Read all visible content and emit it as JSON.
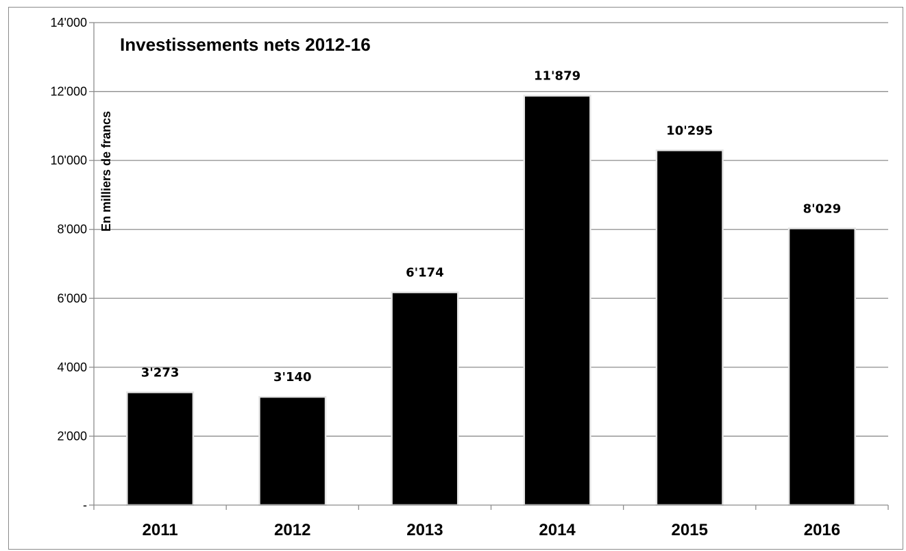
{
  "chart_data": {
    "type": "bar",
    "title": "Investissements nets 2012-16",
    "ylabel": "En milliers de francs",
    "xlabel": "",
    "categories": [
      "2011",
      "2012",
      "2013",
      "2014",
      "2015",
      "2016"
    ],
    "values": [
      3273,
      3140,
      6174,
      11879,
      10295,
      8029
    ],
    "value_labels": [
      "3'273",
      "3'140",
      "6'174",
      "11'879",
      "10'295",
      "8'029"
    ],
    "ylim": [
      0,
      14000
    ],
    "yticks": [
      0,
      2000,
      4000,
      6000,
      8000,
      10000,
      12000,
      14000
    ],
    "ytick_labels": [
      "-",
      "2'000",
      "4'000",
      "6'000",
      "8'000",
      "10'000",
      "12'000",
      "14'000"
    ],
    "grid": true,
    "bar_color": "#000000",
    "grid_color": "#8c8c8c"
  }
}
